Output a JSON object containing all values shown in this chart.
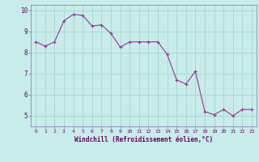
{
  "x": [
    0,
    1,
    2,
    3,
    4,
    5,
    6,
    7,
    8,
    9,
    10,
    11,
    12,
    13,
    14,
    15,
    16,
    17,
    18,
    19,
    20,
    21,
    22,
    23
  ],
  "y": [
    8.5,
    8.3,
    8.5,
    9.5,
    9.8,
    9.75,
    9.25,
    9.3,
    8.9,
    8.25,
    8.5,
    8.5,
    8.5,
    8.5,
    7.9,
    6.7,
    6.5,
    7.1,
    5.2,
    5.05,
    5.3,
    5.0,
    5.3,
    5.3
  ],
  "line_color": "#993399",
  "marker": "+",
  "bg_color": "#c8ecea",
  "grid_color": "#aad8d8",
  "xlabel": "Windchill (Refroidissement éolien,°C)",
  "xlabel_color": "#660066",
  "tick_color": "#660066",
  "axis_color": "#7777aa",
  "ylim": [
    4.5,
    10.25
  ],
  "xlim": [
    -0.5,
    23.5
  ],
  "yticks": [
    5,
    6,
    7,
    8,
    9,
    10
  ],
  "xticks": [
    0,
    1,
    2,
    3,
    4,
    5,
    6,
    7,
    8,
    9,
    10,
    11,
    12,
    13,
    14,
    15,
    16,
    17,
    18,
    19,
    20,
    21,
    22,
    23
  ]
}
